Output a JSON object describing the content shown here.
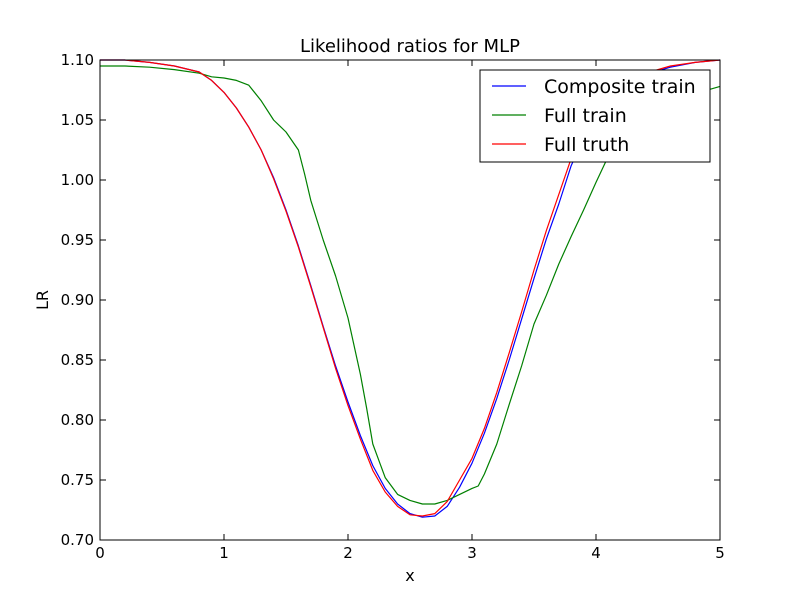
{
  "chart_data": {
    "type": "line",
    "title": "Likelihood ratios for MLP",
    "xlabel": "x",
    "ylabel": "LR",
    "xlim": [
      0,
      5
    ],
    "ylim": [
      0.7,
      1.1
    ],
    "xticks": [
      "0",
      "1",
      "2",
      "3",
      "4",
      "5"
    ],
    "yticks": [
      "0.70",
      "0.75",
      "0.80",
      "0.85",
      "0.90",
      "0.95",
      "1.00",
      "1.05",
      "1.10"
    ],
    "grid": false,
    "legend_position": "top-right",
    "series": [
      {
        "name": "Composite train",
        "color": "#0000ff",
        "x": [
          0,
          0.2,
          0.4,
          0.6,
          0.8,
          0.9,
          1.0,
          1.1,
          1.2,
          1.3,
          1.4,
          1.5,
          1.6,
          1.7,
          1.8,
          1.9,
          2.0,
          2.1,
          2.2,
          2.3,
          2.4,
          2.5,
          2.6,
          2.7,
          2.8,
          2.9,
          3.0,
          3.1,
          3.2,
          3.3,
          3.4,
          3.5,
          3.6,
          3.7,
          3.8,
          3.9,
          4.0,
          4.2,
          4.4,
          4.6,
          4.8,
          5.0
        ],
        "y": [
          1.1,
          1.1,
          1.098,
          1.095,
          1.09,
          1.083,
          1.073,
          1.06,
          1.044,
          1.025,
          1.002,
          0.975,
          0.945,
          0.912,
          0.878,
          0.845,
          0.815,
          0.787,
          0.762,
          0.743,
          0.73,
          0.722,
          0.719,
          0.72,
          0.728,
          0.744,
          0.764,
          0.789,
          0.818,
          0.85,
          0.884,
          0.918,
          0.951,
          0.98,
          1.012,
          1.035,
          1.055,
          1.076,
          1.088,
          1.094,
          1.098,
          1.1
        ]
      },
      {
        "name": "Full train",
        "color": "#008000",
        "x": [
          0,
          0.2,
          0.4,
          0.6,
          0.8,
          0.9,
          1.0,
          1.1,
          1.2,
          1.3,
          1.4,
          1.5,
          1.6,
          1.65,
          1.7,
          1.8,
          1.9,
          2.0,
          2.1,
          2.15,
          2.2,
          2.3,
          2.4,
          2.5,
          2.6,
          2.7,
          2.8,
          2.9,
          3.0,
          3.05,
          3.1,
          3.2,
          3.3,
          3.4,
          3.5,
          3.6,
          3.7,
          3.8,
          3.9,
          4.0,
          4.1,
          4.2,
          4.4,
          4.6,
          4.8,
          5.0
        ],
        "y": [
          1.095,
          1.095,
          1.094,
          1.092,
          1.089,
          1.086,
          1.085,
          1.083,
          1.079,
          1.066,
          1.05,
          1.04,
          1.025,
          1.005,
          0.983,
          0.95,
          0.92,
          0.885,
          0.838,
          0.81,
          0.78,
          0.752,
          0.738,
          0.733,
          0.73,
          0.73,
          0.733,
          0.738,
          0.743,
          0.745,
          0.755,
          0.78,
          0.813,
          0.845,
          0.88,
          0.904,
          0.93,
          0.953,
          0.975,
          0.998,
          1.02,
          1.038,
          1.058,
          1.068,
          1.072,
          1.078
        ]
      },
      {
        "name": "Full truth",
        "color": "#ff0000",
        "x": [
          0,
          0.2,
          0.4,
          0.6,
          0.8,
          0.9,
          1.0,
          1.1,
          1.2,
          1.3,
          1.4,
          1.5,
          1.6,
          1.7,
          1.8,
          1.9,
          2.0,
          2.1,
          2.2,
          2.3,
          2.4,
          2.5,
          2.6,
          2.7,
          2.8,
          2.9,
          3.0,
          3.1,
          3.2,
          3.3,
          3.4,
          3.5,
          3.6,
          3.7,
          3.8,
          3.9,
          4.0,
          4.2,
          4.4,
          4.6,
          4.8,
          5.0
        ],
        "y": [
          1.1,
          1.1,
          1.098,
          1.095,
          1.09,
          1.083,
          1.073,
          1.06,
          1.044,
          1.025,
          1.001,
          0.974,
          0.944,
          0.911,
          0.877,
          0.843,
          0.812,
          0.784,
          0.758,
          0.74,
          0.728,
          0.721,
          0.72,
          0.722,
          0.732,
          0.75,
          0.768,
          0.793,
          0.823,
          0.856,
          0.89,
          0.925,
          0.958,
          0.988,
          1.018,
          1.04,
          1.058,
          1.078,
          1.089,
          1.095,
          1.098,
          1.1
        ]
      }
    ]
  }
}
